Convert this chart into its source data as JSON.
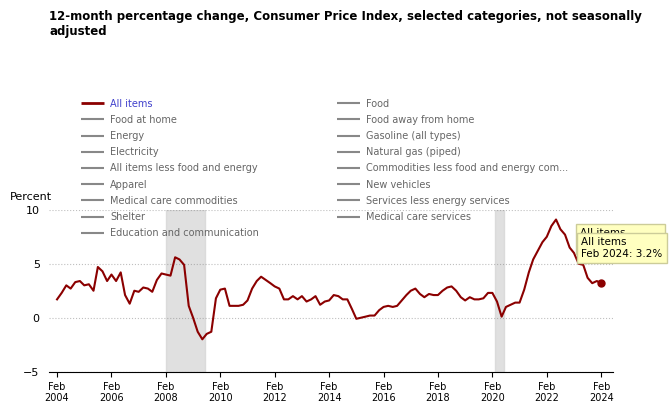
{
  "title": "12-month percentage change, Consumer Price Index, selected categories, not seasonally\nadjusted",
  "ylabel": "Percent",
  "ylim": [
    -5.0,
    10.0
  ],
  "yticks": [
    -5.0,
    0.0,
    5.0,
    10.0
  ],
  "recession_bands": [
    [
      2008.08,
      2009.5
    ]
  ],
  "covid_bands": [
    [
      2020.17,
      2020.5
    ]
  ],
  "line_color": "#8B0000",
  "annotation_text": "All items\nFeb 2024: 3.2%",
  "annotation_box_color": "#FFFFC0",
  "legend_items_left": [
    {
      "label": "All items",
      "color": "#8B0000",
      "lw": 2
    },
    {
      "label": "Food at home",
      "color": "#888888",
      "lw": 1.5
    },
    {
      "label": "Energy",
      "color": "#888888",
      "lw": 1.5
    },
    {
      "label": "Electricity",
      "color": "#888888",
      "lw": 1.5
    },
    {
      "label": "All items less food and energy",
      "color": "#888888",
      "lw": 1.5
    },
    {
      "label": "Apparel",
      "color": "#888888",
      "lw": 1.5
    },
    {
      "label": "Medical care commodities",
      "color": "#888888",
      "lw": 1.5
    },
    {
      "label": "Shelter",
      "color": "#888888",
      "lw": 1.5
    },
    {
      "label": "Education and communication",
      "color": "#888888",
      "lw": 1.5
    }
  ],
  "legend_items_right": [
    {
      "label": "Food",
      "color": "#888888",
      "lw": 1.5
    },
    {
      "label": "Food away from home",
      "color": "#888888",
      "lw": 1.5
    },
    {
      "label": "Gasoline (all types)",
      "color": "#888888",
      "lw": 1.5
    },
    {
      "label": "Natural gas (piped)",
      "color": "#888888",
      "lw": 1.5
    },
    {
      "label": "Commodities less food and energy com...",
      "color": "#888888",
      "lw": 1.5
    },
    {
      "label": "New vehicles",
      "color": "#888888",
      "lw": 1.5
    },
    {
      "label": "Services less energy services",
      "color": "#888888",
      "lw": 1.5
    },
    {
      "label": "Medical care services",
      "color": "#888888",
      "lw": 1.5
    }
  ],
  "data": {
    "x": [
      2004.08,
      2004.25,
      2004.42,
      2004.58,
      2004.75,
      2004.92,
      2005.08,
      2005.25,
      2005.42,
      2005.58,
      2005.75,
      2005.92,
      2006.08,
      2006.25,
      2006.42,
      2006.58,
      2006.75,
      2006.92,
      2007.08,
      2007.25,
      2007.42,
      2007.58,
      2007.75,
      2007.92,
      2008.08,
      2008.25,
      2008.42,
      2008.58,
      2008.75,
      2008.92,
      2009.08,
      2009.25,
      2009.42,
      2009.58,
      2009.75,
      2009.92,
      2010.08,
      2010.25,
      2010.42,
      2010.58,
      2010.75,
      2010.92,
      2011.08,
      2011.25,
      2011.42,
      2011.58,
      2011.75,
      2011.92,
      2012.08,
      2012.25,
      2012.42,
      2012.58,
      2012.75,
      2012.92,
      2013.08,
      2013.25,
      2013.42,
      2013.58,
      2013.75,
      2013.92,
      2014.08,
      2014.25,
      2014.42,
      2014.58,
      2014.75,
      2014.92,
      2015.08,
      2015.25,
      2015.42,
      2015.58,
      2015.75,
      2015.92,
      2016.08,
      2016.25,
      2016.42,
      2016.58,
      2016.75,
      2016.92,
      2017.08,
      2017.25,
      2017.42,
      2017.58,
      2017.75,
      2017.92,
      2018.08,
      2018.25,
      2018.42,
      2018.58,
      2018.75,
      2018.92,
      2019.08,
      2019.25,
      2019.42,
      2019.58,
      2019.75,
      2019.92,
      2020.08,
      2020.25,
      2020.42,
      2020.58,
      2020.75,
      2020.92,
      2021.08,
      2021.25,
      2021.42,
      2021.58,
      2021.75,
      2021.92,
      2022.08,
      2022.25,
      2022.42,
      2022.58,
      2022.75,
      2022.92,
      2023.08,
      2023.25,
      2023.42,
      2023.58,
      2023.75,
      2023.92,
      2024.08
    ],
    "y": [
      1.7,
      2.3,
      3.0,
      2.7,
      3.3,
      3.4,
      3.0,
      3.1,
      2.5,
      4.7,
      4.3,
      3.4,
      4.0,
      3.4,
      4.2,
      2.1,
      1.3,
      2.5,
      2.4,
      2.8,
      2.7,
      2.4,
      3.5,
      4.1,
      4.0,
      3.9,
      5.6,
      5.4,
      4.9,
      1.1,
      0.0,
      -1.3,
      -2.0,
      -1.5,
      -1.3,
      1.8,
      2.6,
      2.7,
      1.1,
      1.1,
      1.1,
      1.2,
      1.6,
      2.7,
      3.4,
      3.8,
      3.5,
      3.2,
      2.9,
      2.7,
      1.7,
      1.7,
      2.0,
      1.7,
      2.0,
      1.5,
      1.7,
      2.0,
      1.2,
      1.5,
      1.6,
      2.1,
      2.0,
      1.7,
      1.7,
      0.8,
      -0.1,
      0.0,
      0.1,
      0.2,
      0.2,
      0.7,
      1.0,
      1.1,
      1.0,
      1.1,
      1.6,
      2.1,
      2.5,
      2.7,
      2.2,
      1.9,
      2.2,
      2.1,
      2.1,
      2.5,
      2.8,
      2.9,
      2.5,
      1.9,
      1.6,
      1.9,
      1.7,
      1.7,
      1.8,
      2.3,
      2.3,
      1.5,
      0.1,
      1.0,
      1.2,
      1.4,
      1.4,
      2.6,
      4.2,
      5.4,
      6.2,
      7.0,
      7.5,
      8.5,
      9.1,
      8.2,
      7.7,
      6.5,
      6.0,
      5.0,
      4.9,
      3.7,
      3.2,
      3.4,
      3.2
    ]
  }
}
